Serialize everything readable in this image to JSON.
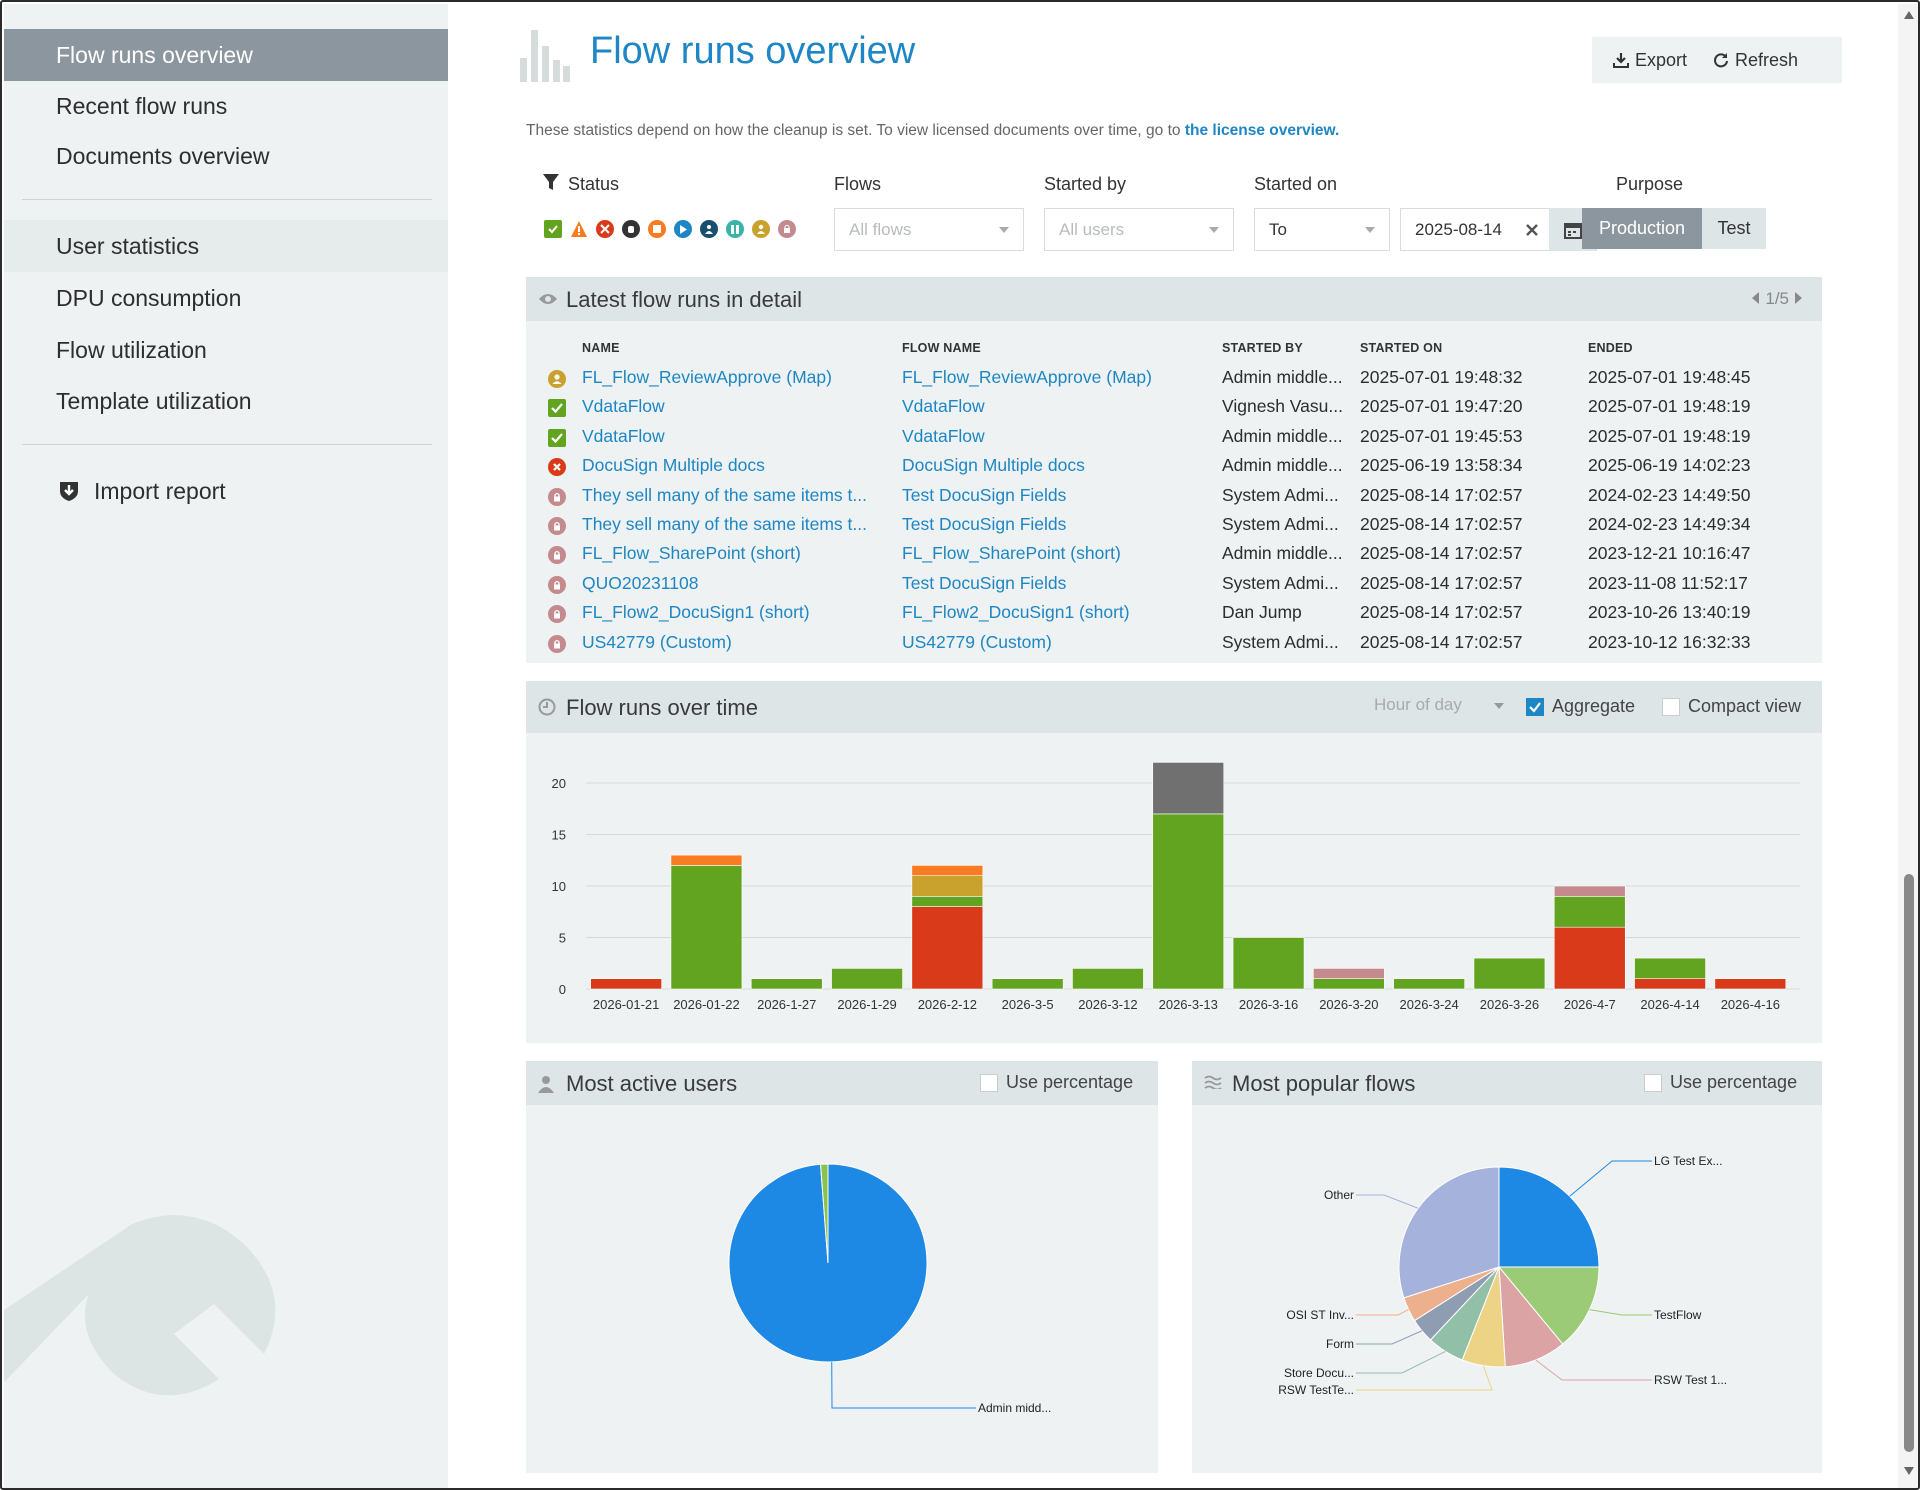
{
  "sidebar": {
    "items": [
      {
        "label": "Flow runs overview"
      },
      {
        "label": "Recent flow runs"
      },
      {
        "label": "Documents overview"
      },
      {
        "label": "User statistics"
      },
      {
        "label": "DPU consumption"
      },
      {
        "label": "Flow utilization"
      },
      {
        "label": "Template utilization"
      }
    ],
    "import_label": "Import report"
  },
  "header": {
    "title": "Flow runs overview",
    "export_label": "Export",
    "refresh_label": "Refresh",
    "info_text": "These statistics depend on how the cleanup is set. To view licensed documents over time, go to",
    "info_link": "the license overview."
  },
  "filters": {
    "status_label": "Status",
    "flows_label": "Flows",
    "flows_placeholder": "All flows",
    "started_by_label": "Started by",
    "started_by_placeholder": "All users",
    "started_on_label": "Started on",
    "started_on_mode": "To",
    "started_on_date": "2025-08-14",
    "purpose_label": "Purpose",
    "purpose_options": [
      "Production",
      "Test"
    ],
    "purpose_selected": "Production",
    "status_icons": [
      "check",
      "warning",
      "error",
      "hand",
      "stop",
      "play",
      "person",
      "pause",
      "user",
      "lock"
    ]
  },
  "latest": {
    "title": "Latest flow runs in detail",
    "pager": "1/5",
    "columns": [
      "NAME",
      "FLOW NAME",
      "STARTED BY",
      "STARTED ON",
      "ENDED"
    ],
    "rows": [
      {
        "status": "user",
        "name": "FL_Flow_ReviewApprove (Map)",
        "flow": "FL_Flow_ReviewApprove (Map)",
        "by": "Admin middle...",
        "started": "2025-07-01 19:48:32",
        "ended": "2025-07-01 19:48:45"
      },
      {
        "status": "check",
        "name": "VdataFlow",
        "flow": "VdataFlow",
        "by": "Vignesh Vasu...",
        "started": "2025-07-01 19:47:20",
        "ended": "2025-07-01 19:48:19"
      },
      {
        "status": "check",
        "name": "VdataFlow",
        "flow": "VdataFlow",
        "by": "Admin middle...",
        "started": "2025-07-01 19:45:53",
        "ended": "2025-07-01 19:48:19"
      },
      {
        "status": "error",
        "name": "DocuSign Multiple docs",
        "flow": "DocuSign Multiple docs",
        "by": "Admin middle...",
        "started": "2025-06-19 13:58:34",
        "ended": "2025-06-19 14:02:23"
      },
      {
        "status": "lock",
        "name": "They sell many of the same items t...",
        "flow": "Test DocuSign Fields",
        "by": "System Admi...",
        "started": "2025-08-14 17:02:57",
        "ended": "2024-02-23 14:49:50"
      },
      {
        "status": "lock",
        "name": "They sell many of the same items t...",
        "flow": "Test DocuSign Fields",
        "by": "System Admi...",
        "started": "2025-08-14 17:02:57",
        "ended": "2024-02-23 14:49:34"
      },
      {
        "status": "lock",
        "name": "FL_Flow_SharePoint (short)",
        "flow": "FL_Flow_SharePoint (short)",
        "by": "Admin middle...",
        "started": "2025-08-14 17:02:57",
        "ended": "2023-12-21 10:16:47"
      },
      {
        "status": "lock",
        "name": "QUO20231108",
        "flow": "Test DocuSign Fields",
        "by": "System Admi...",
        "started": "2025-08-14 17:02:57",
        "ended": "2023-11-08 11:52:17"
      },
      {
        "status": "lock",
        "name": "FL_Flow2_DocuSign1 (short)",
        "flow": "FL_Flow2_DocuSign1 (short)",
        "by": "Dan Jump",
        "started": "2025-08-14 17:02:57",
        "ended": "2023-10-26 13:40:19"
      },
      {
        "status": "lock",
        "name": "US42779 (Custom)",
        "flow": "US42779 (Custom)",
        "by": "System Admi...",
        "started": "2025-08-14 17:02:57",
        "ended": "2023-10-12 16:32:33"
      }
    ]
  },
  "over_time": {
    "title": "Flow runs over time",
    "granularity": "Hour of day",
    "aggregate_label": "Aggregate",
    "aggregate_checked": true,
    "compact_label": "Compact view",
    "compact_checked": false
  },
  "users_panel": {
    "title": "Most active users",
    "percentage_label": "Use percentage"
  },
  "flows_panel": {
    "title": "Most popular flows",
    "percentage_label": "Use percentage"
  },
  "colors": {
    "accent": "#1e86c4",
    "success": "#62a420",
    "error": "#d93a1a",
    "warning": "#f97b22",
    "user": "#c9a22e",
    "lock": "#c58a8e",
    "other": "#707070"
  },
  "chart_data": [
    {
      "type": "bar",
      "stacked": true,
      "categories": [
        "2026-01-21",
        "2026-01-22",
        "2026-1-27",
        "2026-1-29",
        "2026-2-12",
        "2026-3-5",
        "2026-3-12",
        "2026-3-13",
        "2026-3-16",
        "2026-3-20",
        "2026-3-24",
        "2026-3-26",
        "2026-4-7",
        "2026-4-14",
        "2026-4-16"
      ],
      "ylim": [
        0,
        22
      ],
      "yticks": [
        0,
        5,
        10,
        15,
        20
      ],
      "grid": true,
      "series": [
        {
          "color": "#d93a1a",
          "values": [
            1,
            0,
            0,
            0,
            8,
            0,
            0,
            0,
            0,
            0,
            0,
            0,
            6,
            1,
            1
          ]
        },
        {
          "color": "#62a420",
          "values": [
            0,
            12,
            1,
            2,
            1,
            1,
            2,
            17,
            5,
            1,
            1,
            3,
            3,
            2,
            0
          ]
        },
        {
          "color": "#c9a22e",
          "values": [
            0,
            0,
            0,
            0,
            2,
            0,
            0,
            0,
            0,
            0,
            0,
            0,
            0,
            0,
            0
          ]
        },
        {
          "color": "#f97b22",
          "values": [
            0,
            1,
            0,
            0,
            1,
            0,
            0,
            0,
            0,
            0,
            0,
            0,
            0,
            0,
            0
          ]
        },
        {
          "color": "#c58a8e",
          "values": [
            0,
            0,
            0,
            0,
            0,
            0,
            0,
            0,
            0,
            1,
            0,
            0,
            1,
            0,
            0
          ]
        },
        {
          "color": "#707070",
          "values": [
            0,
            0,
            0,
            0,
            0,
            0,
            0,
            5,
            0,
            0,
            0,
            0,
            0,
            0,
            0
          ]
        }
      ]
    },
    {
      "type": "pie",
      "slices": [
        {
          "label": "Admin midd...",
          "value": 98.8,
          "color": "#1e88e5"
        },
        {
          "label": "",
          "value": 1.2,
          "color": "#8bc34a"
        }
      ]
    },
    {
      "type": "pie",
      "slices": [
        {
          "label": "LG Test Ex...",
          "value": 25,
          "color": "#1e88e5"
        },
        {
          "label": "TestFlow",
          "value": 14,
          "color": "#9bcb77"
        },
        {
          "label": "RSW Test 1...",
          "value": 10,
          "color": "#dba3a3"
        },
        {
          "label": "RSW TestTe...",
          "value": 7,
          "color": "#ecd385"
        },
        {
          "label": "Store Docu...",
          "value": 6,
          "color": "#92bfa7"
        },
        {
          "label": "Form",
          "value": 4,
          "color": "#8f9db2"
        },
        {
          "label": "OSI ST Inv...",
          "value": 4,
          "color": "#edb08d"
        },
        {
          "label": "Other",
          "value": 30,
          "color": "#a5b3dc"
        }
      ]
    }
  ]
}
